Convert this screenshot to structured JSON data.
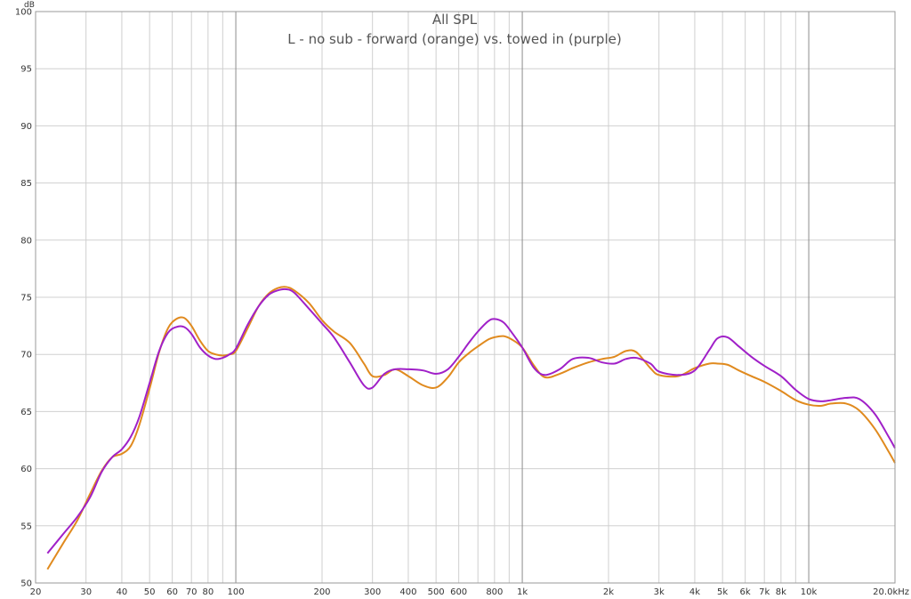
{
  "chart_data": {
    "type": "line",
    "title": "All SPL",
    "subtitle": "L - no sub - forward (orange) vs. towed in (purple)",
    "ylabel": "dB",
    "xscale": "log",
    "xlim": [
      20,
      20000
    ],
    "ylim": [
      50,
      100
    ],
    "grid": true,
    "y_ticks": [
      50,
      55,
      60,
      65,
      70,
      75,
      80,
      85,
      90,
      95,
      100
    ],
    "x_ticks": [
      {
        "value": 20,
        "label": "20"
      },
      {
        "value": 30,
        "label": "30"
      },
      {
        "value": 40,
        "label": "40"
      },
      {
        "value": 50,
        "label": "50"
      },
      {
        "value": 60,
        "label": "60"
      },
      {
        "value": 70,
        "label": "70"
      },
      {
        "value": 80,
        "label": "80"
      },
      {
        "value": 100,
        "label": "100"
      },
      {
        "value": 200,
        "label": "200"
      },
      {
        "value": 300,
        "label": "300"
      },
      {
        "value": 400,
        "label": "400"
      },
      {
        "value": 500,
        "label": "500"
      },
      {
        "value": 600,
        "label": "600"
      },
      {
        "value": 800,
        "label": "800"
      },
      {
        "value": 1000,
        "label": "1k"
      },
      {
        "value": 2000,
        "label": "2k"
      },
      {
        "value": 3000,
        "label": "3k"
      },
      {
        "value": 4000,
        "label": "4k"
      },
      {
        "value": 5000,
        "label": "5k"
      },
      {
        "value": 6000,
        "label": "6k"
      },
      {
        "value": 7000,
        "label": "7k"
      },
      {
        "value": 8000,
        "label": "8k"
      },
      {
        "value": 10000,
        "label": "10k"
      },
      {
        "value": 20000,
        "label": "20.0kHz"
      }
    ],
    "minor_grid_x": [
      20,
      30,
      40,
      50,
      60,
      70,
      80,
      90,
      200,
      300,
      400,
      500,
      600,
      700,
      800,
      900,
      2000,
      3000,
      4000,
      5000,
      6000,
      7000,
      8000,
      9000,
      20000
    ],
    "major_grid_x": [
      100,
      1000,
      10000
    ],
    "series": [
      {
        "color": "#e08a1e",
        "x": [
          22,
          25,
          28,
          31,
          34,
          37,
          40,
          43,
          46,
          50,
          54,
          58,
          62,
          66,
          70,
          75,
          80,
          85,
          90,
          95,
          100,
          110,
          120,
          130,
          140,
          150,
          160,
          180,
          200,
          220,
          250,
          280,
          300,
          330,
          360,
          400,
          450,
          500,
          550,
          600,
          650,
          700,
          760,
          800,
          860,
          920,
          1000,
          1100,
          1200,
          1350,
          1500,
          1700,
          1900,
          2100,
          2300,
          2500,
          2800,
          3000,
          3500,
          4000,
          4500,
          4800,
          5200,
          5700,
          6300,
          7000,
          8000,
          9000,
          10000,
          11000,
          12000,
          13500,
          15000,
          17000,
          19000,
          20000
        ],
        "y": [
          51.2,
          53.5,
          55.5,
          57.8,
          59.8,
          61.0,
          61.3,
          62.0,
          63.8,
          67.0,
          70.2,
          72.3,
          73.1,
          73.2,
          72.5,
          71.2,
          70.3,
          70.0,
          69.9,
          70.0,
          70.3,
          72.3,
          74.2,
          75.3,
          75.8,
          75.9,
          75.6,
          74.5,
          73.0,
          72.0,
          71.0,
          69.2,
          68.1,
          68.2,
          68.7,
          68.1,
          67.3,
          67.1,
          68.0,
          69.3,
          70.1,
          70.7,
          71.3,
          71.5,
          71.6,
          71.3,
          70.6,
          69.0,
          68.0,
          68.3,
          68.8,
          69.3,
          69.6,
          69.8,
          70.3,
          70.2,
          68.8,
          68.2,
          68.1,
          68.8,
          69.2,
          69.2,
          69.1,
          68.6,
          68.1,
          67.6,
          66.8,
          66.0,
          65.6,
          65.5,
          65.7,
          65.7,
          65.1,
          63.5,
          61.5,
          60.5
        ]
      },
      {
        "color": "#a020c8",
        "x": [
          22,
          25,
          28,
          31,
          34,
          37,
          40,
          43,
          46,
          50,
          54,
          58,
          62,
          66,
          70,
          75,
          80,
          85,
          90,
          95,
          100,
          110,
          120,
          130,
          140,
          150,
          160,
          180,
          200,
          220,
          250,
          280,
          300,
          330,
          360,
          400,
          450,
          500,
          550,
          600,
          650,
          700,
          760,
          800,
          860,
          920,
          1000,
          1100,
          1200,
          1350,
          1500,
          1700,
          1900,
          2100,
          2300,
          2500,
          2800,
          3000,
          3500,
          4000,
          4500,
          4800,
          5200,
          5700,
          6300,
          7000,
          8000,
          9000,
          10000,
          11000,
          12000,
          13500,
          15000,
          17000,
          19000,
          20000
        ],
        "y": [
          52.6,
          54.3,
          55.8,
          57.5,
          59.7,
          61.0,
          61.7,
          62.8,
          64.5,
          67.5,
          70.3,
          71.9,
          72.4,
          72.4,
          71.8,
          70.6,
          69.9,
          69.6,
          69.7,
          70.0,
          70.5,
          72.6,
          74.2,
          75.2,
          75.6,
          75.7,
          75.4,
          74.0,
          72.7,
          71.5,
          69.3,
          67.3,
          67.1,
          68.3,
          68.7,
          68.7,
          68.6,
          68.3,
          68.7,
          69.8,
          71.0,
          72.0,
          72.9,
          73.1,
          72.8,
          71.9,
          70.6,
          68.8,
          68.2,
          68.7,
          69.6,
          69.7,
          69.3,
          69.2,
          69.6,
          69.7,
          69.2,
          68.5,
          68.2,
          68.6,
          70.4,
          71.4,
          71.5,
          70.7,
          69.8,
          69.0,
          68.1,
          66.9,
          66.1,
          65.9,
          66.0,
          66.2,
          66.1,
          64.8,
          62.8,
          61.8
        ]
      }
    ]
  }
}
